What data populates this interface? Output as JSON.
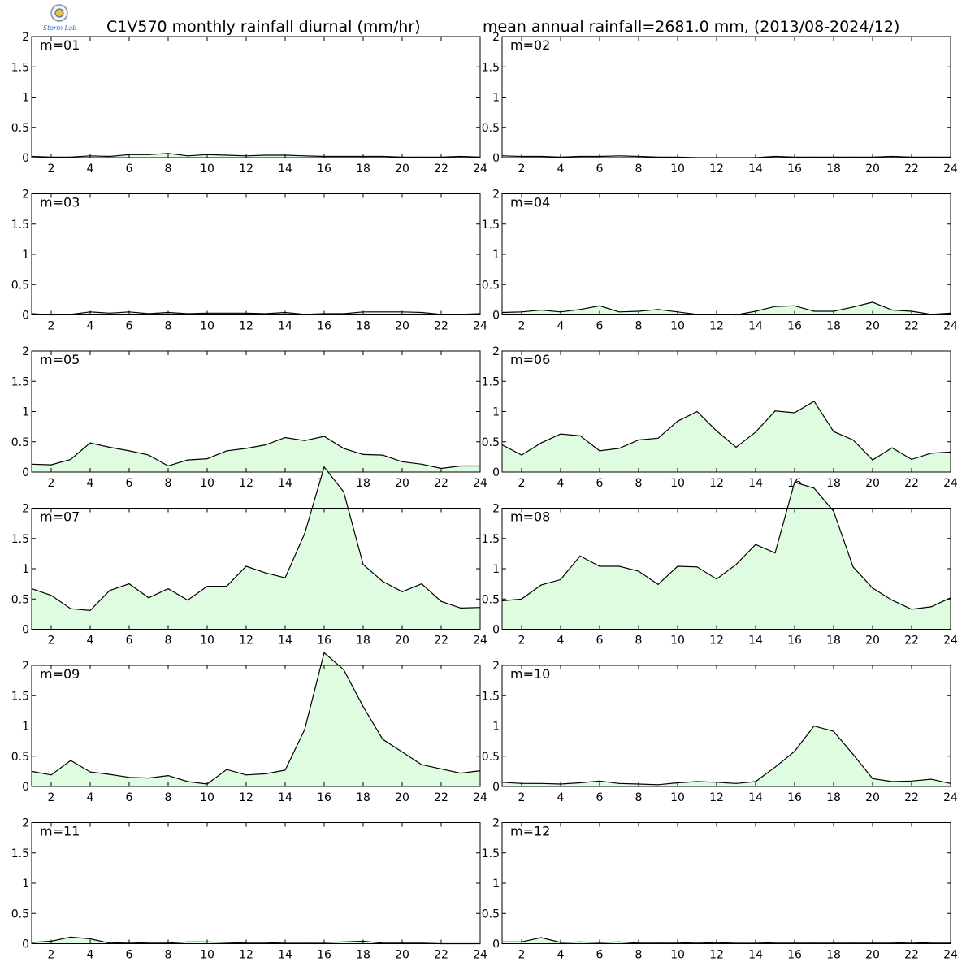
{
  "header": {
    "title_left": "C1V570 monthly rainfall diurnal (mm/hr)",
    "title_right": "mean annual rainfall=2681.0 mm, (2013/08-2024/12)",
    "logo_text": "Storm Lab"
  },
  "colors": {
    "fill": "#e0fce0",
    "line": "#000000",
    "frame": "#000000"
  },
  "chart_data": {
    "type": "area",
    "x": [
      1,
      2,
      3,
      4,
      5,
      6,
      7,
      8,
      9,
      10,
      11,
      12,
      13,
      14,
      15,
      16,
      17,
      18,
      19,
      20,
      21,
      22,
      23,
      24
    ],
    "xlim": [
      1,
      24
    ],
    "ylim": [
      0,
      2
    ],
    "xticks": [
      2,
      4,
      6,
      8,
      10,
      12,
      14,
      16,
      18,
      20,
      22,
      24
    ],
    "yticks": [
      0,
      0.5,
      1,
      1.5,
      2
    ],
    "ytick_labels": [
      "0",
      "0.5",
      "1",
      "1.5",
      "2"
    ],
    "grid": false,
    "panels": [
      {
        "label": "m=01",
        "values": [
          0.02,
          0.01,
          0.01,
          0.03,
          0.02,
          0.05,
          0.05,
          0.07,
          0.03,
          0.05,
          0.04,
          0.03,
          0.04,
          0.04,
          0.03,
          0.02,
          0.02,
          0.02,
          0.02,
          0.01,
          0.01,
          0.01,
          0.02,
          0.01
        ]
      },
      {
        "label": "m=02",
        "values": [
          0.03,
          0.02,
          0.02,
          0.01,
          0.02,
          0.02,
          0.03,
          0.02,
          0.01,
          0.01,
          0.0,
          0.0,
          0.0,
          0.0,
          0.02,
          0.01,
          0.01,
          0.01,
          0.01,
          0.01,
          0.02,
          0.01,
          0.01,
          0.01
        ]
      },
      {
        "label": "m=03",
        "values": [
          0.02,
          0.0,
          0.01,
          0.05,
          0.03,
          0.05,
          0.02,
          0.04,
          0.02,
          0.03,
          0.03,
          0.03,
          0.02,
          0.04,
          0.01,
          0.02,
          0.02,
          0.05,
          0.05,
          0.05,
          0.04,
          0.01,
          0.01,
          0.02
        ]
      },
      {
        "label": "m=04",
        "values": [
          0.04,
          0.05,
          0.08,
          0.05,
          0.09,
          0.15,
          0.05,
          0.06,
          0.09,
          0.05,
          0.01,
          0.01,
          0.0,
          0.06,
          0.14,
          0.15,
          0.06,
          0.06,
          0.13,
          0.21,
          0.08,
          0.06,
          0.01,
          0.03
        ]
      },
      {
        "label": "m=05",
        "values": [
          0.13,
          0.12,
          0.21,
          0.48,
          0.41,
          0.35,
          0.28,
          0.1,
          0.2,
          0.22,
          0.35,
          0.39,
          0.45,
          0.57,
          0.52,
          0.59,
          0.39,
          0.29,
          0.28,
          0.17,
          0.13,
          0.06,
          0.1,
          0.1
        ]
      },
      {
        "label": "m=06",
        "values": [
          0.45,
          0.28,
          0.48,
          0.63,
          0.6,
          0.35,
          0.39,
          0.53,
          0.56,
          0.84,
          1.0,
          0.68,
          0.41,
          0.66,
          1.01,
          0.98,
          1.17,
          0.67,
          0.53,
          0.2,
          0.4,
          0.21,
          0.31,
          0.33
        ]
      },
      {
        "label": "m=07",
        "values": [
          0.67,
          0.56,
          0.34,
          0.31,
          0.64,
          0.75,
          0.52,
          0.67,
          0.48,
          0.71,
          0.71,
          1.04,
          0.93,
          0.85,
          1.58,
          2.68,
          2.27,
          1.07,
          0.79,
          0.62,
          0.75,
          0.46,
          0.35,
          0.36
        ]
      },
      {
        "label": "m=08",
        "values": [
          0.47,
          0.5,
          0.73,
          0.82,
          1.21,
          1.04,
          1.04,
          0.96,
          0.74,
          1.04,
          1.03,
          0.83,
          1.07,
          1.4,
          1.26,
          2.43,
          2.33,
          1.95,
          1.03,
          0.68,
          0.48,
          0.33,
          0.37,
          0.52
        ]
      },
      {
        "label": "m=09",
        "values": [
          0.25,
          0.19,
          0.43,
          0.24,
          0.2,
          0.15,
          0.14,
          0.18,
          0.08,
          0.04,
          0.28,
          0.19,
          0.21,
          0.27,
          0.94,
          2.21,
          1.93,
          1.32,
          0.78,
          0.57,
          0.36,
          0.29,
          0.22,
          0.26
        ]
      },
      {
        "label": "m=10",
        "values": [
          0.07,
          0.05,
          0.05,
          0.04,
          0.06,
          0.09,
          0.05,
          0.04,
          0.03,
          0.06,
          0.08,
          0.07,
          0.05,
          0.08,
          0.32,
          0.58,
          1.0,
          0.91,
          0.53,
          0.13,
          0.08,
          0.09,
          0.12,
          0.05
        ]
      },
      {
        "label": "m=11",
        "values": [
          0.02,
          0.04,
          0.11,
          0.08,
          0.01,
          0.02,
          0.01,
          0.01,
          0.03,
          0.03,
          0.02,
          0.01,
          0.01,
          0.02,
          0.02,
          0.02,
          0.03,
          0.04,
          0.01,
          0.01,
          0.01,
          0.0,
          0.0,
          0.0
        ]
      },
      {
        "label": "m=12",
        "values": [
          0.03,
          0.03,
          0.1,
          0.02,
          0.03,
          0.02,
          0.03,
          0.01,
          0.01,
          0.01,
          0.02,
          0.01,
          0.02,
          0.02,
          0.01,
          0.01,
          0.01,
          0.01,
          0.01,
          0.01,
          0.01,
          0.02,
          0.01,
          0.01
        ]
      }
    ]
  }
}
